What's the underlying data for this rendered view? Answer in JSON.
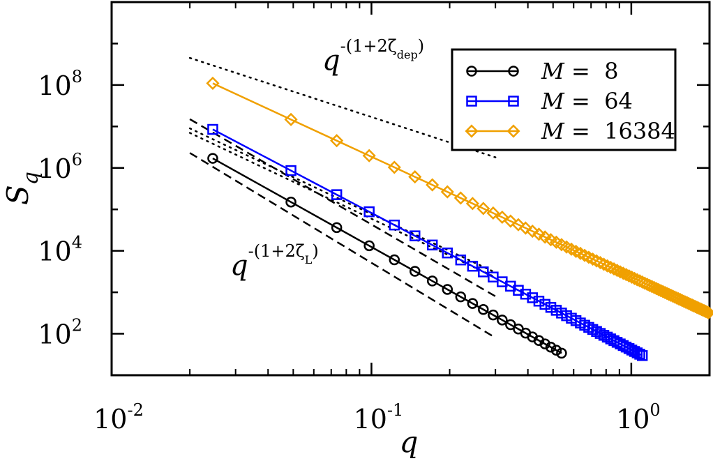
{
  "chart_data": {
    "type": "line",
    "xlabel": "q",
    "ylabel_main": "S",
    "ylabel_sub": "q",
    "x_scale": "log",
    "y_scale": "log",
    "xlim": [
      0.01,
      2.0
    ],
    "ylim": [
      10,
      10000000000
    ],
    "grid": false,
    "legend_position": "top-right",
    "x_ticks": [
      {
        "base": "10",
        "exp": "-2",
        "value": 0.01
      },
      {
        "base": "10",
        "exp": "-1",
        "value": 0.1
      },
      {
        "base": "10",
        "exp": "0",
        "value": 1
      }
    ],
    "y_ticks": [
      {
        "base": "10",
        "exp": "2",
        "value": 100
      },
      {
        "base": "10",
        "exp": "4",
        "value": 10000
      },
      {
        "base": "10",
        "exp": "6",
        "value": 1000000
      },
      {
        "base": "10",
        "exp": "8",
        "value": 100000000
      }
    ],
    "series": [
      {
        "name": "M =  8",
        "legend_var": "M",
        "legend_rest": " =  8",
        "color": "#000000",
        "marker": "circle",
        "q_step": 0.0245,
        "n_points": 22,
        "amplitude": 1700000,
        "slope": -3.5
      },
      {
        "name": "M =  64",
        "legend_var": "M",
        "legend_rest": " =  64",
        "color": "#0000ff",
        "marker": "square",
        "q_step": 0.0245,
        "n_points": 45,
        "amplitude": 8500000,
        "slope": -3.3
      },
      {
        "name": "M =  16384",
        "legend_var": "M",
        "legend_rest": " =  16384",
        "color": "#f0a000",
        "marker": "diamond",
        "q_step": 0.0245,
        "n_points": 81,
        "amplitude": 110000000,
        "slope": -2.9
      }
    ],
    "guides": [
      {
        "style": "dotted",
        "x": [
          0.02,
          0.3
        ],
        "y": [
          450000000,
          1800000
        ]
      },
      {
        "style": "dotted",
        "x": [
          0.02,
          0.3
        ],
        "y": [
          7000000,
          2300
        ]
      },
      {
        "style": "dotted",
        "x": [
          0.02,
          0.3
        ],
        "y": [
          9000000,
          3000
        ]
      },
      {
        "style": "dashed",
        "x": [
          0.02,
          0.3
        ],
        "y": [
          15000000,
          800
        ]
      },
      {
        "style": "dashed",
        "x": [
          0.02,
          0.3
        ],
        "y": [
          2300000,
          80
        ]
      }
    ],
    "annotations": [
      {
        "var": "q",
        "sup": "-(1+2ζ",
        "sub": "dep",
        "close": ")"
      },
      {
        "var": "q",
        "sup": "-(1+2ζ",
        "sub": "L",
        "close": ")"
      }
    ]
  }
}
